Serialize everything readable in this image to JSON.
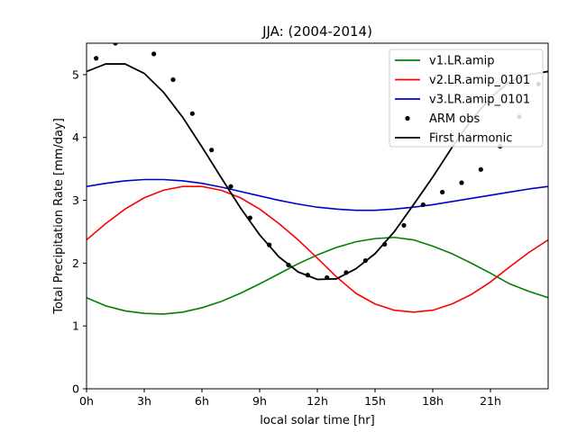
{
  "chart_data": {
    "type": "line",
    "title": "JJA: (2004-2014)",
    "xlabel": "local solar time [hr]",
    "ylabel": "Total Precipitation Rate [mm/day]",
    "xlim": [
      0,
      24
    ],
    "ylim": [
      0,
      5.5
    ],
    "x_ticks": [
      0,
      3,
      6,
      9,
      12,
      15,
      18,
      21
    ],
    "x_tick_labels": [
      "0h",
      "3h",
      "6h",
      "9h",
      "12h",
      "15h",
      "18h",
      "21h"
    ],
    "y_ticks": [
      0,
      1,
      2,
      3,
      4,
      5
    ],
    "y_tick_labels": [
      "0",
      "1",
      "2",
      "3",
      "4",
      "5"
    ],
    "grid": false,
    "legend_position": "top-right",
    "series": [
      {
        "name": "v1.LR.amip",
        "color": "#008000",
        "style": "line",
        "x": [
          0,
          1,
          2,
          3,
          4,
          5,
          6,
          7,
          8,
          9,
          10,
          11,
          12,
          13,
          14,
          15,
          16,
          17,
          18,
          19,
          20,
          21,
          22,
          23,
          24
        ],
        "y": [
          1.45,
          1.32,
          1.24,
          1.2,
          1.19,
          1.22,
          1.29,
          1.39,
          1.52,
          1.67,
          1.83,
          1.99,
          2.13,
          2.25,
          2.34,
          2.39,
          2.41,
          2.37,
          2.27,
          2.15,
          2.0,
          1.84,
          1.67,
          1.55,
          1.45
        ]
      },
      {
        "name": "v2.LR.amip_0101",
        "color": "#ff0000",
        "style": "line",
        "x": [
          0,
          1,
          2,
          3,
          4,
          5,
          6,
          7,
          8,
          9,
          10,
          11,
          12,
          13,
          14,
          15,
          16,
          17,
          18,
          19,
          20,
          21,
          22,
          23,
          24
        ],
        "y": [
          2.37,
          2.63,
          2.86,
          3.04,
          3.16,
          3.22,
          3.22,
          3.16,
          3.04,
          2.86,
          2.63,
          2.37,
          2.08,
          1.78,
          1.52,
          1.35,
          1.25,
          1.22,
          1.25,
          1.35,
          1.5,
          1.7,
          1.94,
          2.17,
          2.37
        ]
      },
      {
        "name": "v3.LR.amip_0101",
        "color": "#0000cc",
        "style": "line",
        "x": [
          0,
          1,
          2,
          3,
          4,
          5,
          6,
          7,
          8,
          9,
          10,
          11,
          12,
          13,
          14,
          15,
          16,
          17,
          18,
          19,
          20,
          21,
          22,
          23,
          24
        ],
        "y": [
          3.22,
          3.27,
          3.31,
          3.33,
          3.33,
          3.31,
          3.27,
          3.21,
          3.14,
          3.07,
          3.0,
          2.94,
          2.89,
          2.86,
          2.84,
          2.84,
          2.86,
          2.89,
          2.93,
          2.98,
          3.03,
          3.08,
          3.13,
          3.18,
          3.22
        ]
      },
      {
        "name": "ARM obs",
        "color": "#000000",
        "style": "points",
        "x": [
          0.5,
          1.5,
          3.5,
          4.5,
          5.5,
          6.5,
          7.5,
          8.5,
          9.5,
          10.5,
          11.5,
          12.5,
          13.5,
          14.5,
          15.5,
          16.5,
          17.5,
          18.5,
          19.5,
          20.5,
          21.5,
          22.5,
          23.5
        ],
        "y": [
          5.26,
          5.5,
          5.33,
          4.92,
          4.38,
          3.8,
          3.22,
          2.72,
          2.29,
          1.97,
          1.81,
          1.77,
          1.85,
          2.04,
          2.3,
          2.6,
          2.93,
          3.13,
          3.28,
          3.49,
          3.86,
          4.33,
          4.85
        ]
      },
      {
        "name": "First harmonic",
        "color": "#000000",
        "style": "line",
        "x": [
          0,
          1,
          2,
          3,
          4,
          5,
          6,
          7,
          8,
          9,
          10,
          11,
          12,
          13,
          14,
          15,
          16,
          17,
          18,
          19,
          20,
          21,
          22,
          23,
          24
        ],
        "y": [
          5.05,
          5.17,
          5.17,
          5.02,
          4.72,
          4.32,
          3.85,
          3.36,
          2.88,
          2.45,
          2.1,
          1.86,
          1.74,
          1.75,
          1.91,
          2.15,
          2.5,
          2.93,
          3.37,
          3.84,
          4.28,
          4.63,
          4.89,
          5.0,
          5.05
        ]
      }
    ]
  }
}
